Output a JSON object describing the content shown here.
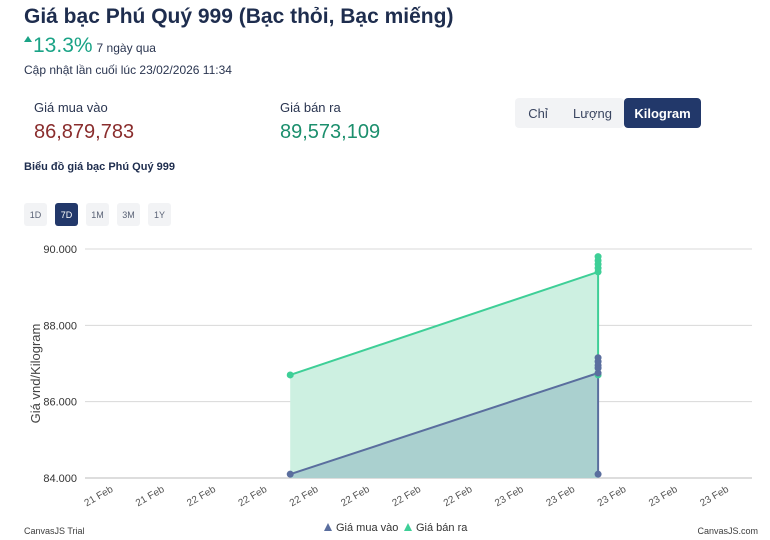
{
  "header": {
    "title": "Giá bạc Phú Quý 999 (Bạc thỏi, Bạc miếng)",
    "change_pct": "13.3%",
    "change_period": "7 ngày qua",
    "updated": "Cập nhật lần cuối lúc 23/02/2026 11:34"
  },
  "prices": {
    "buy_label": "Giá mua vào",
    "buy_value": "86,879,783",
    "sell_label": "Giá bán ra",
    "sell_value": "89,573,109"
  },
  "units": [
    {
      "label": "Chỉ",
      "active": false
    },
    {
      "label": "Lượng",
      "active": false
    },
    {
      "label": "Kilogram",
      "active": true
    }
  ],
  "chart_caption": "Biểu đồ giá bạc Phú Quý 999",
  "ranges": [
    {
      "label": "1D",
      "active": false
    },
    {
      "label": "7D",
      "active": true
    },
    {
      "label": "1M",
      "active": false
    },
    {
      "label": "3M",
      "active": false
    },
    {
      "label": "1Y",
      "active": false
    }
  ],
  "colors": {
    "buy": "#5a6e9e",
    "buy_fill": "#a8cdcd",
    "sell": "#3ecf97",
    "sell_fill": "#cdf0e1",
    "grid": "#d8d8d8",
    "accent": "#22386a"
  },
  "chart_data": {
    "type": "area",
    "ylabel": "Giá vnd/Kilogram",
    "ylim": [
      84000,
      90000
    ],
    "yticks": [
      "84.000",
      "86.000",
      "88.000",
      "90.000"
    ],
    "xtick_labels": [
      "21 Feb",
      "21 Feb",
      "22 Feb",
      "22 Feb",
      "22 Feb",
      "22 Feb",
      "22 Feb",
      "22 Feb",
      "23 Feb",
      "23 Feb",
      "23 Feb",
      "23 Feb",
      "23 Feb"
    ],
    "x_index_range": [
      -0.5,
      12.5
    ],
    "grid": true,
    "legend_position": "bottom",
    "series": [
      {
        "name": "Giá mua vào",
        "points": [
          [
            3.5,
            84100
          ],
          [
            9.5,
            86750
          ],
          [
            9.5,
            86880
          ],
          [
            9.5,
            86950
          ],
          [
            9.5,
            87050
          ],
          [
            9.5,
            87150
          ],
          [
            9.5,
            84100
          ]
        ]
      },
      {
        "name": "Giá bán ra",
        "points": [
          [
            3.5,
            86700
          ],
          [
            9.5,
            89400
          ],
          [
            9.5,
            89500
          ],
          [
            9.5,
            89600
          ],
          [
            9.5,
            89700
          ],
          [
            9.5,
            89800
          ],
          [
            9.5,
            86700
          ]
        ]
      }
    ]
  },
  "footer": {
    "trial": "CanvasJS Trial",
    "credit": "CanvasJS.com"
  }
}
